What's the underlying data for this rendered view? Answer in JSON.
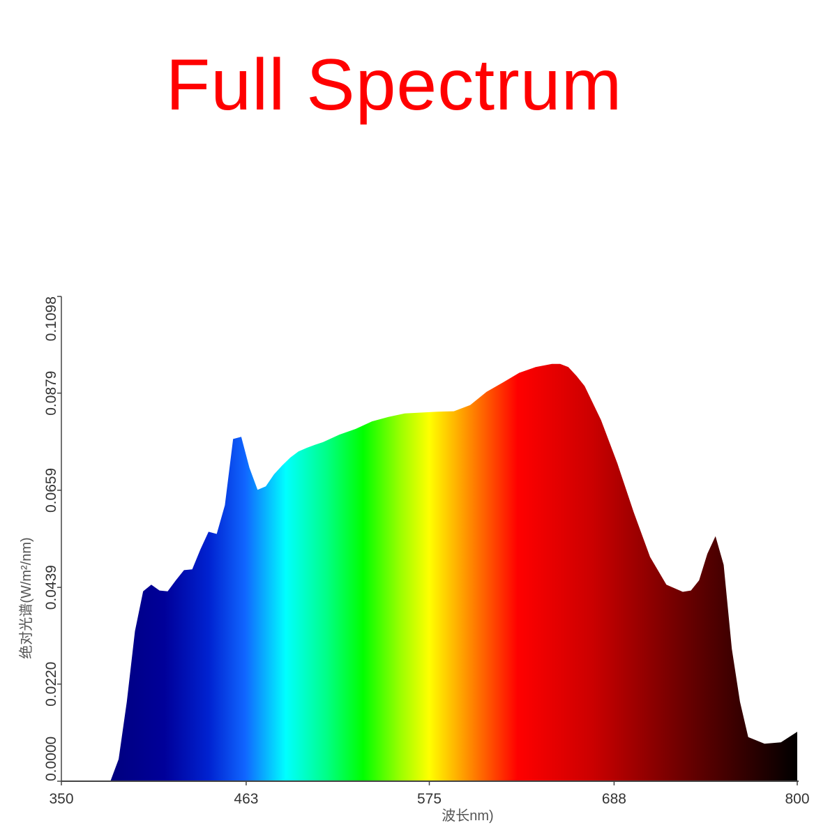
{
  "title": "Full Spectrum",
  "colors": {
    "title": "#ff0000",
    "axis": "#444444",
    "text": "#333333"
  },
  "chart_data": {
    "type": "area",
    "title": "Full Spectrum",
    "xlabel": "波长nm)",
    "ylabel": "绝对光谱(W/m²/nm)",
    "xlim": [
      350,
      800
    ],
    "ylim": [
      0,
      0.1098
    ],
    "xticks": [
      350,
      463,
      575,
      688,
      800
    ],
    "xtick_labels": [
      "350",
      "463",
      "575",
      "688",
      "800"
    ],
    "yticks": [
      0.0,
      0.022,
      0.0439,
      0.0659,
      0.0879,
      0.1098
    ],
    "ytick_labels": [
      "0.0000",
      "0.0220",
      "0.0439",
      "0.0659",
      "0.0879",
      "0.1098"
    ],
    "grid": false,
    "fill": "spectral-gradient",
    "x": [
      350,
      380,
      385,
      390,
      395,
      400,
      405,
      410,
      415,
      420,
      425,
      430,
      435,
      440,
      445,
      450,
      455,
      460,
      465,
      470,
      475,
      480,
      485,
      490,
      495,
      500,
      505,
      510,
      520,
      530,
      540,
      550,
      560,
      570,
      580,
      590,
      600,
      610,
      620,
      630,
      640,
      650,
      655,
      660,
      665,
      670,
      680,
      690,
      700,
      710,
      720,
      730,
      735,
      740,
      745,
      750,
      755,
      760,
      765,
      770,
      780,
      790,
      800
    ],
    "y": [
      0.0,
      0.0,
      0.005,
      0.018,
      0.034,
      0.043,
      0.0445,
      0.0432,
      0.043,
      0.0455,
      0.0478,
      0.048,
      0.0525,
      0.0565,
      0.056,
      0.0625,
      0.0775,
      0.078,
      0.071,
      0.066,
      0.0668,
      0.0695,
      0.0715,
      0.0733,
      0.0747,
      0.0755,
      0.0762,
      0.0768,
      0.0785,
      0.0798,
      0.0815,
      0.0825,
      0.0833,
      0.0835,
      0.0837,
      0.0838,
      0.0852,
      0.0882,
      0.0903,
      0.0925,
      0.0938,
      0.0945,
      0.0945,
      0.0938,
      0.0918,
      0.0895,
      0.0818,
      0.072,
      0.0609,
      0.0508,
      0.0445,
      0.0429,
      0.0432,
      0.0455,
      0.0515,
      0.0555,
      0.049,
      0.03,
      0.018,
      0.01,
      0.0085,
      0.0088,
      0.0112
    ]
  }
}
